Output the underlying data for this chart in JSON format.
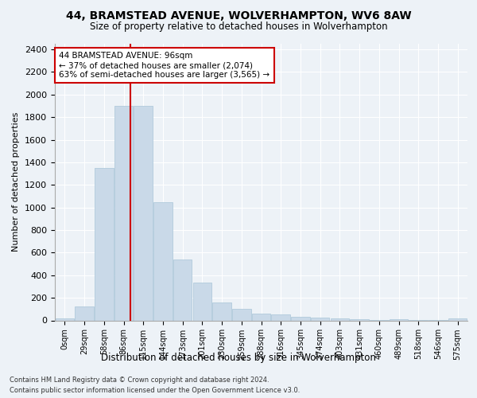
{
  "title": "44, BRAMSTEAD AVENUE, WOLVERHAMPTON, WV6 8AW",
  "subtitle": "Size of property relative to detached houses in Wolverhampton",
  "xlabel": "Distribution of detached houses by size in Wolverhampton",
  "ylabel": "Number of detached properties",
  "categories": [
    "0sqm",
    "29sqm",
    "58sqm",
    "86sqm",
    "115sqm",
    "144sqm",
    "173sqm",
    "201sqm",
    "230sqm",
    "259sqm",
    "288sqm",
    "316sqm",
    "345sqm",
    "374sqm",
    "403sqm",
    "431sqm",
    "460sqm",
    "489sqm",
    "518sqm",
    "546sqm",
    "575sqm"
  ],
  "bar_heights": [
    15,
    125,
    1350,
    1900,
    1900,
    1050,
    540,
    335,
    160,
    105,
    60,
    55,
    30,
    25,
    15,
    10,
    5,
    10,
    5,
    2,
    15
  ],
  "bar_color": "#c9d9e8",
  "bar_edge_color": "#a8c4d8",
  "red_line_color": "#cc0000",
  "red_line_x": 3.34,
  "annotation_title": "44 BRAMSTEAD AVENUE: 96sqm",
  "annotation_line1": "← 37% of detached houses are smaller (2,074)",
  "annotation_line2": "63% of semi-detached houses are larger (3,565) →",
  "annotation_box_color": "#ffffff",
  "annotation_box_edge_color": "#cc0000",
  "ylim": [
    0,
    2450
  ],
  "yticks": [
    0,
    200,
    400,
    600,
    800,
    1000,
    1200,
    1400,
    1600,
    1800,
    2000,
    2200,
    2400
  ],
  "background_color": "#edf2f7",
  "grid_color": "#ffffff",
  "footnote1": "Contains HM Land Registry data © Crown copyright and database right 2024.",
  "footnote2": "Contains public sector information licensed under the Open Government Licence v3.0."
}
